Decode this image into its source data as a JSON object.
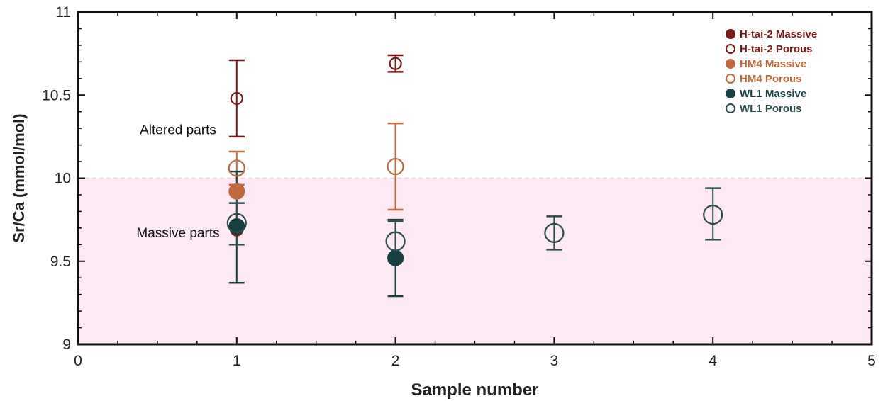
{
  "chart_data": {
    "type": "scatter",
    "title": "",
    "xlabel": "Sample number",
    "ylabel": "Sr/Ca (mmol/mol)",
    "xlim": [
      0,
      5
    ],
    "ylim": [
      9,
      11
    ],
    "xticks": [
      "0",
      "1",
      "2",
      "3",
      "4",
      "5"
    ],
    "yticks": [
      "9",
      "9.5",
      "10",
      "10.5",
      "11"
    ],
    "x_tick_values": [
      0,
      1,
      2,
      3,
      4,
      5
    ],
    "y_tick_values": [
      9,
      9.5,
      10,
      10.5,
      11
    ],
    "grid": false,
    "legend_position": "top-right",
    "shaded_band": {
      "y0": 9,
      "y1": 10,
      "color": "#fde9f3"
    },
    "annotations": [
      {
        "text": "Altered parts",
        "x": 0.63,
        "y": 10.29
      },
      {
        "text": "Massive parts",
        "x": 0.63,
        "y": 9.67
      }
    ],
    "series": [
      {
        "name": "H-tai-2 Massive",
        "color": "#7a1a1a",
        "filled": true,
        "points": [
          {
            "x": 1,
            "y": 9.69,
            "lo": 9.69,
            "hi": 9.69
          }
        ]
      },
      {
        "name": "H-tai-2 Porous",
        "color": "#7a1a1a",
        "filled": false,
        "points": [
          {
            "x": 1,
            "y": 10.48,
            "lo": 10.25,
            "hi": 10.71
          },
          {
            "x": 2,
            "y": 10.69,
            "lo": 10.64,
            "hi": 10.74
          }
        ]
      },
      {
        "name": "HM4 Massive",
        "color": "#c0693c",
        "filled": true,
        "points": [
          {
            "x": 1,
            "y": 9.92,
            "lo": 9.92,
            "hi": 9.92
          }
        ]
      },
      {
        "name": "HM4 Porous",
        "color": "#c0693c",
        "filled": false,
        "points": [
          {
            "x": 1,
            "y": 10.06,
            "lo": 9.96,
            "hi": 10.16
          },
          {
            "x": 2,
            "y": 10.07,
            "lo": 9.81,
            "hi": 10.33
          }
        ]
      },
      {
        "name": "WL1 Massive",
        "color": "#173f3f",
        "filled": true,
        "points": [
          {
            "x": 1,
            "y": 9.71,
            "lo": 9.37,
            "hi": 10.04
          },
          {
            "x": 2,
            "y": 9.52,
            "lo": 9.29,
            "hi": 9.75
          }
        ]
      },
      {
        "name": "WL1 Porous",
        "color": "#2e4b4b",
        "filled": false,
        "points": [
          {
            "x": 1,
            "y": 9.73,
            "lo": 9.6,
            "hi": 9.85
          },
          {
            "x": 2,
            "y": 9.62,
            "lo": 9.5,
            "hi": 9.74
          },
          {
            "x": 3,
            "y": 9.67,
            "lo": 9.57,
            "hi": 9.77
          },
          {
            "x": 4,
            "y": 9.78,
            "lo": 9.63,
            "hi": 9.94
          }
        ]
      }
    ]
  }
}
